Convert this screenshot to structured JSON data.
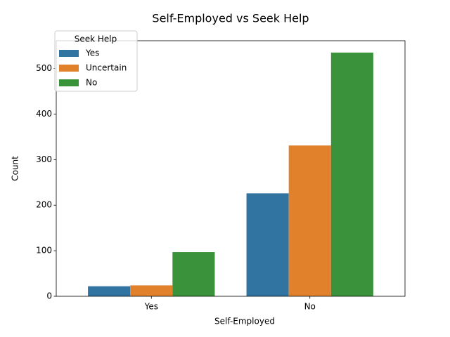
{
  "chart_data": {
    "type": "bar",
    "title": "Self-Employed vs Seek Help",
    "xlabel": "Self-Employed",
    "ylabel": "Count",
    "categories": [
      "Yes",
      "No"
    ],
    "series": [
      {
        "name": "Yes",
        "values": [
          22,
          226
        ],
        "color": "#3274a1"
      },
      {
        "name": "Uncertain",
        "values": [
          24,
          331
        ],
        "color": "#e1812c"
      },
      {
        "name": "No",
        "values": [
          97,
          535
        ],
        "color": "#3a923a"
      }
    ],
    "ylim": [
      0,
      561
    ],
    "yticks": [
      0,
      100,
      200,
      300,
      400,
      500
    ],
    "legend": {
      "title": "Seek Help",
      "placement": "top-left"
    },
    "grid": false
  }
}
